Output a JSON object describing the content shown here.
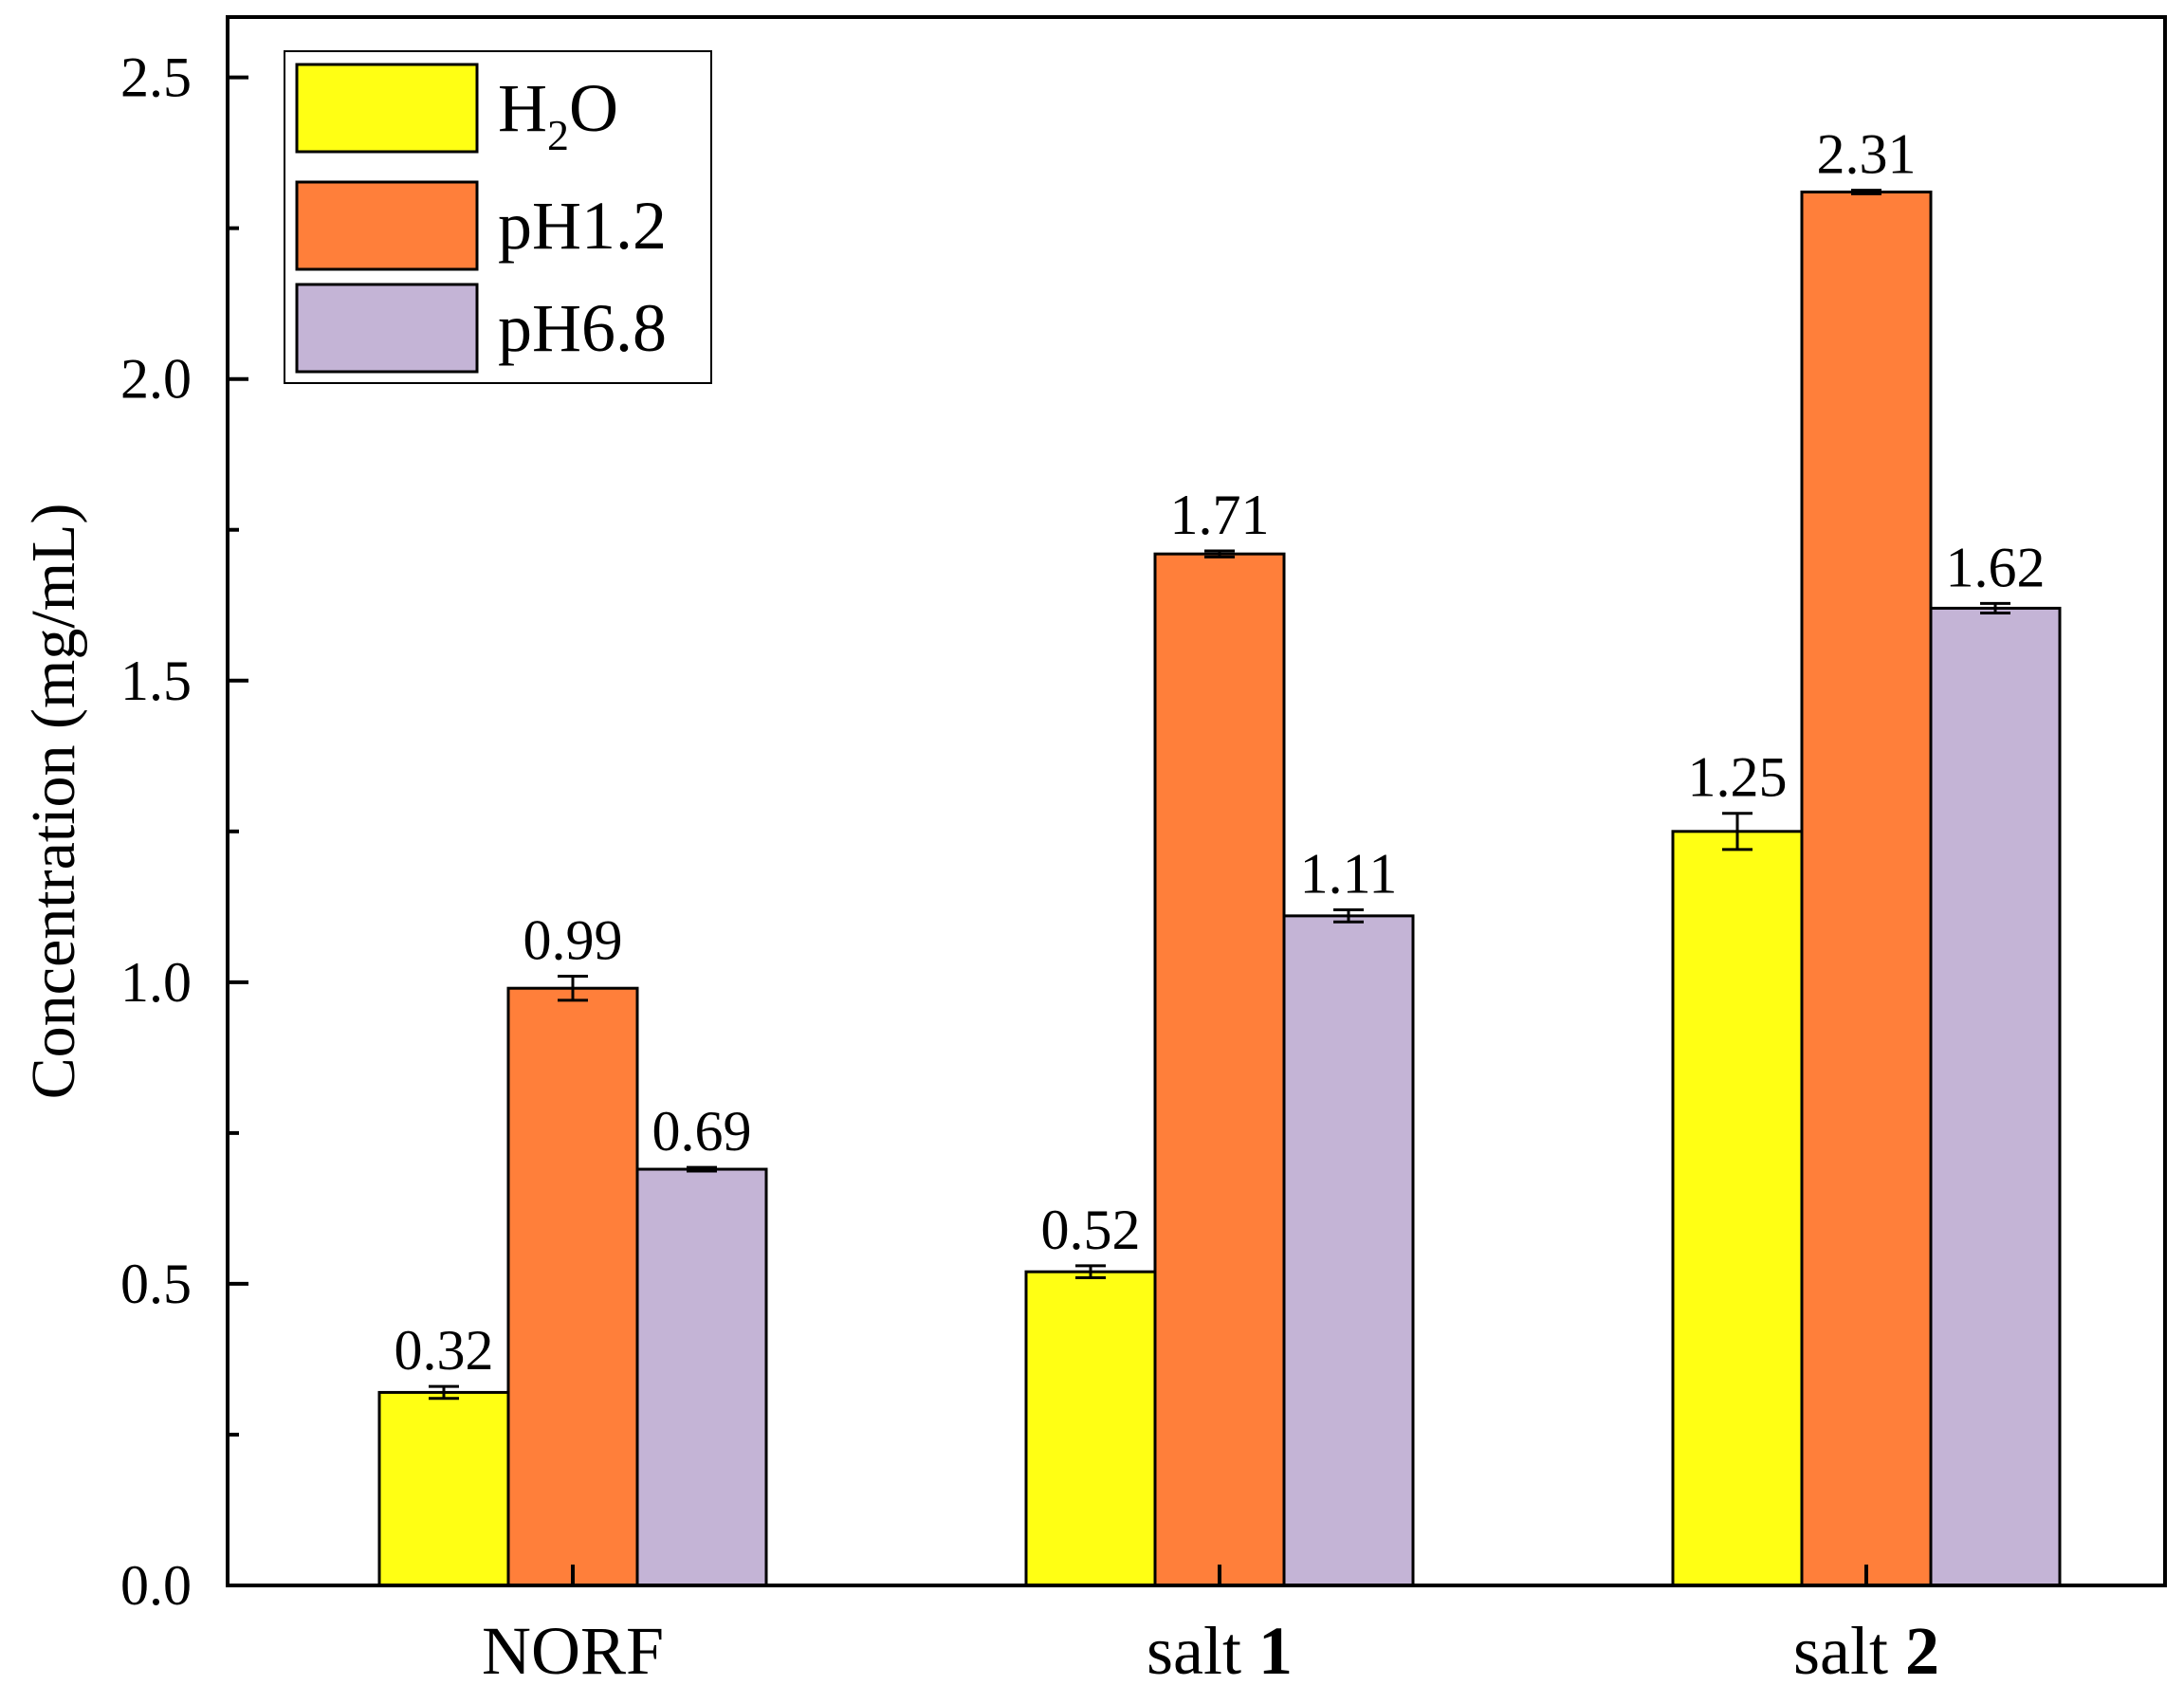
{
  "chart_data": {
    "type": "bar",
    "title": "",
    "xlabel": "",
    "ylabel": "Concentration (mg/mL)",
    "ylim": [
      0,
      2.6
    ],
    "yticks": [
      "0.0",
      "0.5",
      "1.0",
      "1.5",
      "2.0",
      "2.5"
    ],
    "categories": [
      {
        "label": "NORF",
        "base": "NORF",
        "bold": ""
      },
      {
        "label": "salt 1",
        "base": "salt ",
        "bold": "1"
      },
      {
        "label": "salt 2",
        "base": "salt ",
        "bold": "2"
      }
    ],
    "series": [
      {
        "name": "H2O",
        "legend_base": "H",
        "legend_sub": "2",
        "legend_tail": "O",
        "color": "#FFFF14",
        "values": [
          0.32,
          0.52,
          1.25
        ],
        "labels": [
          "0.32",
          "0.52",
          "1.25"
        ],
        "errors": [
          0.01,
          0.01,
          0.03
        ]
      },
      {
        "name": "pH1.2",
        "legend_base": "pH1.2",
        "legend_sub": "",
        "legend_tail": "",
        "color": "#FF7F3A",
        "values": [
          0.99,
          1.71,
          2.31
        ],
        "labels": [
          "0.99",
          "1.71",
          "2.31"
        ],
        "errors": [
          0.02,
          0.005,
          0.003
        ]
      },
      {
        "name": "pH6.8",
        "legend_base": "pH6.8",
        "legend_sub": "",
        "legend_tail": "",
        "color": "#C4B4D6",
        "values": [
          0.69,
          1.11,
          1.62
        ],
        "labels": [
          "0.69",
          "1.11",
          "1.62"
        ],
        "errors": [
          0.003,
          0.01,
          0.008
        ]
      }
    ],
    "legend": "top-left",
    "grid": false
  }
}
